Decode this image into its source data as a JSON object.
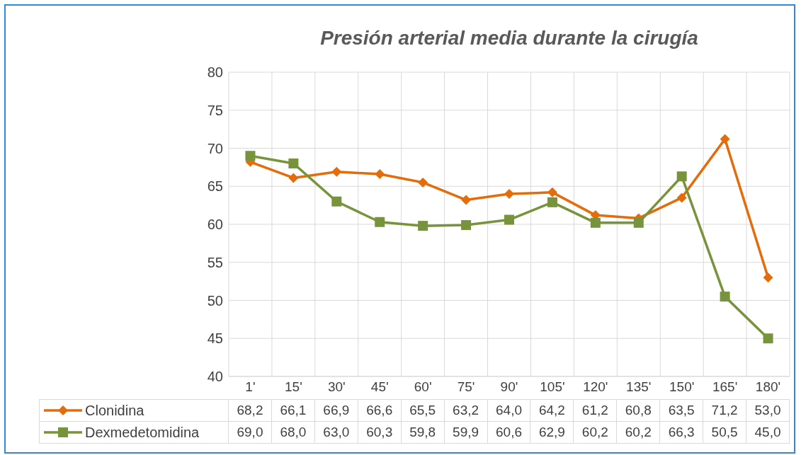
{
  "chart_data": {
    "type": "line",
    "title": "Presión arterial media durante la cirugía",
    "categories": [
      "1'",
      "15'",
      "30'",
      "45'",
      "60'",
      "75'",
      "90'",
      "105'",
      "120'",
      "135'",
      "150'",
      "165'",
      "180'"
    ],
    "series": [
      {
        "name": "Clonidina",
        "color": "#e46c0a",
        "marker": "diamond",
        "values": [
          68.2,
          66.1,
          66.9,
          66.6,
          65.5,
          63.2,
          64.0,
          64.2,
          61.2,
          60.8,
          63.5,
          71.2,
          53.0
        ],
        "value_labels": [
          "68,2",
          "66,1",
          "66,9",
          "66,6",
          "65,5",
          "63,2",
          "64,0",
          "64,2",
          "61,2",
          "60,8",
          "63,5",
          "71,2",
          "53,0"
        ]
      },
      {
        "name": "Dexmedetomidina",
        "color": "#77933c",
        "marker": "square",
        "values": [
          69.0,
          68.0,
          63.0,
          60.3,
          59.8,
          59.9,
          60.6,
          62.9,
          60.2,
          60.2,
          66.3,
          50.5,
          45.0
        ],
        "value_labels": [
          "69,0",
          "68,0",
          "63,0",
          "60,3",
          "59,8",
          "59,9",
          "60,6",
          "62,9",
          "60,2",
          "60,2",
          "66,3",
          "50,5",
          "45,0"
        ]
      }
    ],
    "ylim": [
      40,
      80
    ],
    "yticks": [
      40,
      45,
      50,
      55,
      60,
      65,
      70,
      75,
      80
    ],
    "grid": true,
    "legend": "bottom left",
    "line_style": "solid"
  }
}
